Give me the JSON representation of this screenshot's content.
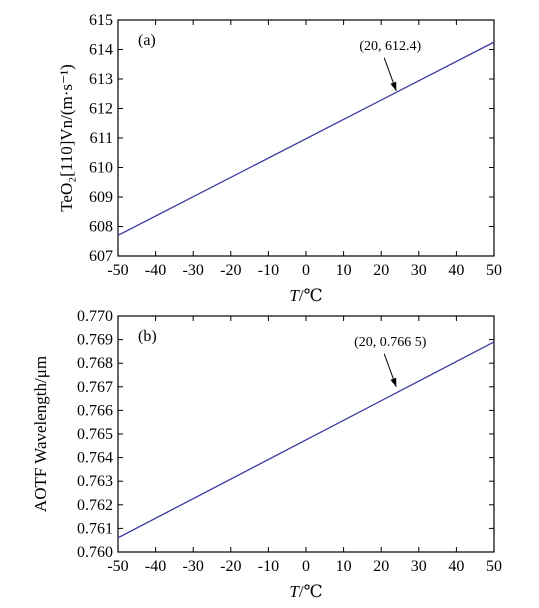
{
  "chart_data": [
    {
      "type": "line",
      "panel_label": "(a)",
      "xlabel_italic": "T",
      "xlabel_unit": "/℃",
      "ylabel": "TeO₂[110]Vn/(m·s⁻¹)",
      "xlim": [
        -50,
        50
      ],
      "ylim": [
        607,
        615
      ],
      "xticks": [
        "-50",
        "-40",
        "-30",
        "-20",
        "-10",
        "0",
        "10",
        "20",
        "30",
        "40",
        "50"
      ],
      "yticks": [
        "607",
        "608",
        "609",
        "610",
        "611",
        "612",
        "613",
        "614",
        "615"
      ],
      "series": [
        {
          "x": [
            -50,
            50
          ],
          "y": [
            607.7,
            614.25
          ]
        }
      ],
      "annotation": {
        "text": "(20, 612.4)",
        "x": 24,
        "y": 612.6
      },
      "line_color": "#3a3aa0",
      "grid": false
    },
    {
      "type": "line",
      "panel_label": "(b)",
      "xlabel_italic": "T",
      "xlabel_unit": "/℃",
      "ylabel": "AOTF Wavelength/μm",
      "xlim": [
        -50,
        50
      ],
      "ylim": [
        0.76,
        0.77
      ],
      "xticks": [
        "-50",
        "-40",
        "-30",
        "-20",
        "-10",
        "0",
        "10",
        "20",
        "30",
        "40",
        "50"
      ],
      "yticks": [
        "0.760",
        "0.761",
        "0.762",
        "0.763",
        "0.764",
        "0.765",
        "0.766",
        "0.767",
        "0.768",
        "0.769",
        "0.770"
      ],
      "series": [
        {
          "x": [
            -50,
            50
          ],
          "y": [
            0.7606,
            0.7689
          ]
        }
      ],
      "annotation": {
        "text": "(20, 0.766 5)",
        "x": 24,
        "y": 0.767
      },
      "line_color": "#3a3aa0",
      "grid": false
    }
  ]
}
